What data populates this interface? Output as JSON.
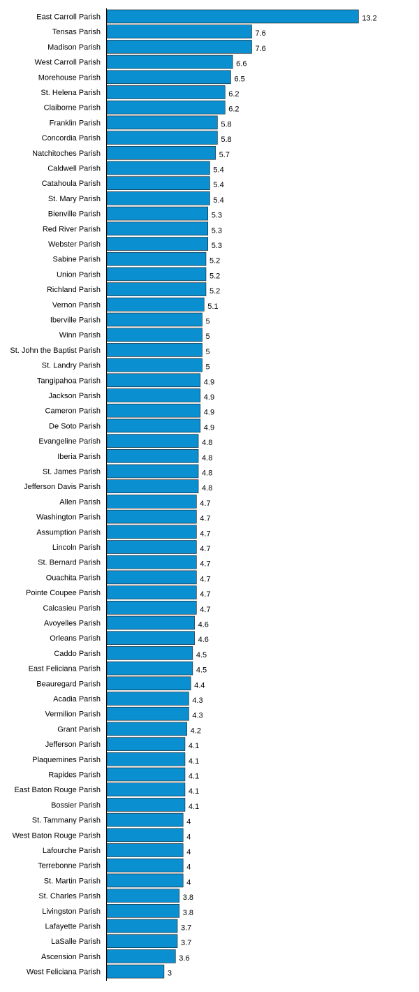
{
  "chart_data": {
    "type": "bar",
    "orientation": "horizontal",
    "bar_color": "#0a8fd0",
    "categories": [
      "East Carroll Parish",
      "Tensas Parish",
      "Madison Parish",
      "West Carroll Parish",
      "Morehouse Parish",
      "St. Helena Parish",
      "Claiborne Parish",
      "Franklin Parish",
      "Concordia Parish",
      "Natchitoches Parish",
      "Caldwell Parish",
      "Catahoula Parish",
      "St. Mary Parish",
      "Bienville Parish",
      "Red River Parish",
      "Webster Parish",
      "Sabine Parish",
      "Union Parish",
      "Richland Parish",
      "Vernon Parish",
      "Iberville Parish",
      "Winn Parish",
      "St. John the Baptist Parish",
      "St. Landry Parish",
      "Tangipahoa Parish",
      "Jackson Parish",
      "Cameron Parish",
      "De Soto Parish",
      "Evangeline Parish",
      "Iberia Parish",
      "St. James Parish",
      "Jefferson Davis Parish",
      "Allen Parish",
      "Washington Parish",
      "Assumption Parish",
      "Lincoln Parish",
      "St. Bernard Parish",
      "Ouachita Parish",
      "Pointe Coupee Parish",
      "Calcasieu Parish",
      "Avoyelles Parish",
      "Orleans Parish",
      "Caddo Parish",
      "East Feliciana Parish",
      "Beauregard Parish",
      "Acadia Parish",
      "Vermilion Parish",
      "Grant Parish",
      "Jefferson Parish",
      "Plaquemines Parish",
      "Rapides Parish",
      "East Baton Rouge Parish",
      "Bossier Parish",
      "St. Tammany Parish",
      "West Baton Rouge Parish",
      "Lafourche Parish",
      "Terrebonne Parish",
      "St. Martin Parish",
      "St. Charles Parish",
      "Livingston Parish",
      "Lafayette Parish",
      "LaSalle Parish",
      "Ascension Parish",
      "West Feliciana Parish"
    ],
    "values": [
      13.2,
      7.6,
      7.6,
      6.6,
      6.5,
      6.2,
      6.2,
      5.8,
      5.8,
      5.7,
      5.4,
      5.4,
      5.4,
      5.3,
      5.3,
      5.3,
      5.2,
      5.2,
      5.2,
      5.1,
      5,
      5,
      5,
      5,
      4.9,
      4.9,
      4.9,
      4.9,
      4.8,
      4.8,
      4.8,
      4.8,
      4.7,
      4.7,
      4.7,
      4.7,
      4.7,
      4.7,
      4.7,
      4.7,
      4.6,
      4.6,
      4.5,
      4.5,
      4.4,
      4.3,
      4.3,
      4.2,
      4.1,
      4.1,
      4.1,
      4.1,
      4.1,
      4,
      4,
      4,
      4,
      4,
      3.8,
      3.8,
      3.7,
      3.7,
      3.6,
      3
    ],
    "xlim": [
      0,
      13.2
    ],
    "grid": false,
    "title": "",
    "xlabel": "",
    "ylabel": ""
  }
}
